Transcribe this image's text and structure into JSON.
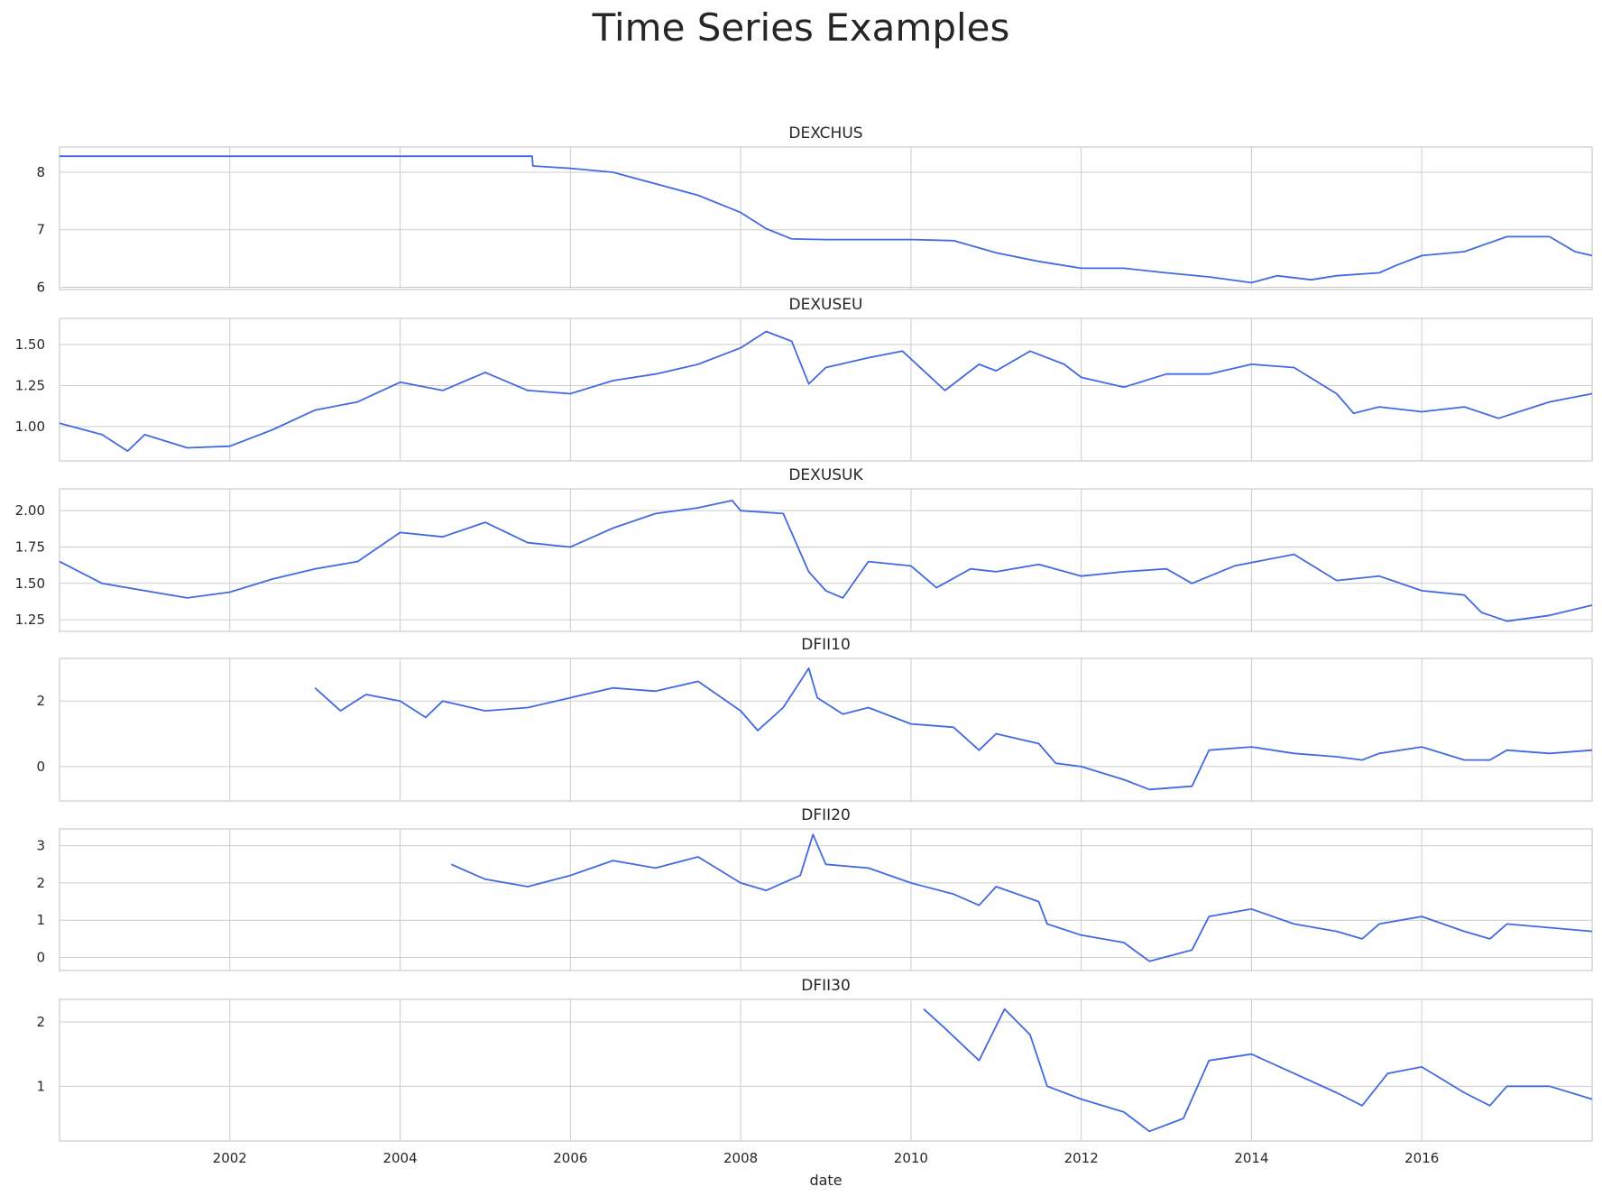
{
  "figure": {
    "title": "Time Series Examples"
  },
  "chart_data": {
    "type": "line",
    "title": "Time Series Examples",
    "xlabel": "date",
    "xlim": [
      2000.0,
      2018.0
    ],
    "x_ticks": [
      "2002",
      "2004",
      "2006",
      "2008",
      "2010",
      "2012",
      "2014",
      "2016"
    ],
    "grid": true,
    "line_color": "#4169e1",
    "sharex": true,
    "panels": [
      {
        "title": "DEXCHUS",
        "ylim": [
          5.96,
          8.44
        ],
        "y_ticks": [
          "6",
          "7",
          "8"
        ],
        "series": [
          [
            2000.0,
            8.28
          ],
          [
            2005.55,
            8.28
          ],
          [
            2005.56,
            8.11
          ],
          [
            2006.0,
            8.07
          ],
          [
            2006.5,
            8.0
          ],
          [
            2007.0,
            7.8
          ],
          [
            2007.5,
            7.6
          ],
          [
            2008.0,
            7.3
          ],
          [
            2008.3,
            7.02
          ],
          [
            2008.6,
            6.84
          ],
          [
            2009.0,
            6.83
          ],
          [
            2010.0,
            6.83
          ],
          [
            2010.5,
            6.81
          ],
          [
            2011.0,
            6.6
          ],
          [
            2011.5,
            6.45
          ],
          [
            2012.0,
            6.33
          ],
          [
            2012.5,
            6.33
          ],
          [
            2013.0,
            6.25
          ],
          [
            2013.5,
            6.18
          ],
          [
            2014.0,
            6.08
          ],
          [
            2014.3,
            6.2
          ],
          [
            2014.7,
            6.13
          ],
          [
            2015.0,
            6.2
          ],
          [
            2015.5,
            6.25
          ],
          [
            2015.7,
            6.38
          ],
          [
            2016.0,
            6.55
          ],
          [
            2016.5,
            6.62
          ],
          [
            2017.0,
            6.88
          ],
          [
            2017.5,
            6.88
          ],
          [
            2017.8,
            6.62
          ],
          [
            2018.0,
            6.55
          ]
        ]
      },
      {
        "title": "DEXUSEU",
        "ylim": [
          0.79,
          1.66
        ],
        "y_ticks": [
          "1.00",
          "1.25",
          "1.50"
        ],
        "series": [
          [
            2000.0,
            1.02
          ],
          [
            2000.5,
            0.95
          ],
          [
            2000.8,
            0.85
          ],
          [
            2001.0,
            0.95
          ],
          [
            2001.5,
            0.87
          ],
          [
            2002.0,
            0.88
          ],
          [
            2002.5,
            0.98
          ],
          [
            2003.0,
            1.1
          ],
          [
            2003.5,
            1.15
          ],
          [
            2004.0,
            1.27
          ],
          [
            2004.5,
            1.22
          ],
          [
            2005.0,
            1.33
          ],
          [
            2005.5,
            1.22
          ],
          [
            2006.0,
            1.2
          ],
          [
            2006.5,
            1.28
          ],
          [
            2007.0,
            1.32
          ],
          [
            2007.5,
            1.38
          ],
          [
            2008.0,
            1.48
          ],
          [
            2008.3,
            1.58
          ],
          [
            2008.6,
            1.52
          ],
          [
            2008.8,
            1.26
          ],
          [
            2009.0,
            1.36
          ],
          [
            2009.5,
            1.42
          ],
          [
            2009.9,
            1.46
          ],
          [
            2010.4,
            1.22
          ],
          [
            2010.8,
            1.38
          ],
          [
            2011.0,
            1.34
          ],
          [
            2011.4,
            1.46
          ],
          [
            2011.8,
            1.38
          ],
          [
            2012.0,
            1.3
          ],
          [
            2012.5,
            1.24
          ],
          [
            2013.0,
            1.32
          ],
          [
            2013.5,
            1.32
          ],
          [
            2014.0,
            1.38
          ],
          [
            2014.5,
            1.36
          ],
          [
            2015.0,
            1.2
          ],
          [
            2015.2,
            1.08
          ],
          [
            2015.5,
            1.12
          ],
          [
            2016.0,
            1.09
          ],
          [
            2016.5,
            1.12
          ],
          [
            2016.9,
            1.05
          ],
          [
            2017.5,
            1.15
          ],
          [
            2018.0,
            1.2
          ]
        ]
      },
      {
        "title": "DEXUSUK",
        "ylim": [
          1.17,
          2.15
        ],
        "y_ticks": [
          "1.25",
          "1.50",
          "1.75",
          "2.00"
        ],
        "series": [
          [
            2000.0,
            1.65
          ],
          [
            2000.5,
            1.5
          ],
          [
            2001.0,
            1.45
          ],
          [
            2001.5,
            1.4
          ],
          [
            2002.0,
            1.44
          ],
          [
            2002.5,
            1.53
          ],
          [
            2003.0,
            1.6
          ],
          [
            2003.5,
            1.65
          ],
          [
            2004.0,
            1.85
          ],
          [
            2004.5,
            1.82
          ],
          [
            2005.0,
            1.92
          ],
          [
            2005.5,
            1.78
          ],
          [
            2006.0,
            1.75
          ],
          [
            2006.5,
            1.88
          ],
          [
            2007.0,
            1.98
          ],
          [
            2007.5,
            2.02
          ],
          [
            2007.9,
            2.07
          ],
          [
            2008.0,
            2.0
          ],
          [
            2008.5,
            1.98
          ],
          [
            2008.8,
            1.58
          ],
          [
            2009.0,
            1.45
          ],
          [
            2009.2,
            1.4
          ],
          [
            2009.5,
            1.65
          ],
          [
            2010.0,
            1.62
          ],
          [
            2010.3,
            1.47
          ],
          [
            2010.7,
            1.6
          ],
          [
            2011.0,
            1.58
          ],
          [
            2011.5,
            1.63
          ],
          [
            2012.0,
            1.55
          ],
          [
            2012.5,
            1.58
          ],
          [
            2013.0,
            1.6
          ],
          [
            2013.3,
            1.5
          ],
          [
            2013.8,
            1.62
          ],
          [
            2014.5,
            1.7
          ],
          [
            2015.0,
            1.52
          ],
          [
            2015.5,
            1.55
          ],
          [
            2016.0,
            1.45
          ],
          [
            2016.5,
            1.42
          ],
          [
            2016.7,
            1.3
          ],
          [
            2017.0,
            1.24
          ],
          [
            2017.5,
            1.28
          ],
          [
            2018.0,
            1.35
          ]
        ]
      },
      {
        "title": "DFII10",
        "ylim": [
          -1.05,
          3.3
        ],
        "y_ticks": [
          "0",
          "2"
        ],
        "series": [
          [
            2003.0,
            2.4
          ],
          [
            2003.3,
            1.7
          ],
          [
            2003.6,
            2.2
          ],
          [
            2004.0,
            2.0
          ],
          [
            2004.3,
            1.5
          ],
          [
            2004.5,
            2.0
          ],
          [
            2005.0,
            1.7
          ],
          [
            2005.5,
            1.8
          ],
          [
            2006.0,
            2.1
          ],
          [
            2006.5,
            2.4
          ],
          [
            2007.0,
            2.3
          ],
          [
            2007.5,
            2.6
          ],
          [
            2008.0,
            1.7
          ],
          [
            2008.2,
            1.1
          ],
          [
            2008.5,
            1.8
          ],
          [
            2008.8,
            3.0
          ],
          [
            2008.9,
            2.1
          ],
          [
            2009.2,
            1.6
          ],
          [
            2009.5,
            1.8
          ],
          [
            2010.0,
            1.3
          ],
          [
            2010.5,
            1.2
          ],
          [
            2010.8,
            0.5
          ],
          [
            2011.0,
            1.0
          ],
          [
            2011.5,
            0.7
          ],
          [
            2011.7,
            0.1
          ],
          [
            2012.0,
            0.0
          ],
          [
            2012.5,
            -0.4
          ],
          [
            2012.8,
            -0.7
          ],
          [
            2013.3,
            -0.6
          ],
          [
            2013.5,
            0.5
          ],
          [
            2014.0,
            0.6
          ],
          [
            2014.5,
            0.4
          ],
          [
            2015.0,
            0.3
          ],
          [
            2015.3,
            0.2
          ],
          [
            2015.5,
            0.4
          ],
          [
            2016.0,
            0.6
          ],
          [
            2016.5,
            0.2
          ],
          [
            2016.8,
            0.2
          ],
          [
            2017.0,
            0.5
          ],
          [
            2017.5,
            0.4
          ],
          [
            2018.0,
            0.5
          ]
        ]
      },
      {
        "title": "DFII20",
        "ylim": [
          -0.35,
          3.45
        ],
        "y_ticks": [
          "0",
          "1",
          "2",
          "3"
        ],
        "series": [
          [
            2004.6,
            2.5
          ],
          [
            2005.0,
            2.1
          ],
          [
            2005.5,
            1.9
          ],
          [
            2006.0,
            2.2
          ],
          [
            2006.5,
            2.6
          ],
          [
            2007.0,
            2.4
          ],
          [
            2007.5,
            2.7
          ],
          [
            2008.0,
            2.0
          ],
          [
            2008.3,
            1.8
          ],
          [
            2008.7,
            2.2
          ],
          [
            2008.85,
            3.3
          ],
          [
            2009.0,
            2.5
          ],
          [
            2009.5,
            2.4
          ],
          [
            2010.0,
            2.0
          ],
          [
            2010.5,
            1.7
          ],
          [
            2010.8,
            1.4
          ],
          [
            2011.0,
            1.9
          ],
          [
            2011.5,
            1.5
          ],
          [
            2011.6,
            0.9
          ],
          [
            2012.0,
            0.6
          ],
          [
            2012.5,
            0.4
          ],
          [
            2012.8,
            -0.1
          ],
          [
            2013.3,
            0.2
          ],
          [
            2013.5,
            1.1
          ],
          [
            2014.0,
            1.3
          ],
          [
            2014.5,
            0.9
          ],
          [
            2015.0,
            0.7
          ],
          [
            2015.3,
            0.5
          ],
          [
            2015.5,
            0.9
          ],
          [
            2016.0,
            1.1
          ],
          [
            2016.5,
            0.7
          ],
          [
            2016.8,
            0.5
          ],
          [
            2017.0,
            0.9
          ],
          [
            2017.5,
            0.8
          ],
          [
            2018.0,
            0.7
          ]
        ]
      },
      {
        "title": "DFII30",
        "ylim": [
          0.15,
          2.35
        ],
        "y_ticks": [
          "1",
          "2"
        ],
        "series": [
          [
            2010.15,
            2.2
          ],
          [
            2010.4,
            1.9
          ],
          [
            2010.8,
            1.4
          ],
          [
            2011.1,
            2.2
          ],
          [
            2011.4,
            1.8
          ],
          [
            2011.6,
            1.0
          ],
          [
            2012.0,
            0.8
          ],
          [
            2012.5,
            0.6
          ],
          [
            2012.8,
            0.3
          ],
          [
            2013.2,
            0.5
          ],
          [
            2013.5,
            1.4
          ],
          [
            2014.0,
            1.5
          ],
          [
            2014.5,
            1.2
          ],
          [
            2015.0,
            0.9
          ],
          [
            2015.3,
            0.7
          ],
          [
            2015.6,
            1.2
          ],
          [
            2016.0,
            1.3
          ],
          [
            2016.5,
            0.9
          ],
          [
            2016.8,
            0.7
          ],
          [
            2017.0,
            1.0
          ],
          [
            2017.5,
            1.0
          ],
          [
            2018.0,
            0.8
          ]
        ]
      }
    ]
  }
}
